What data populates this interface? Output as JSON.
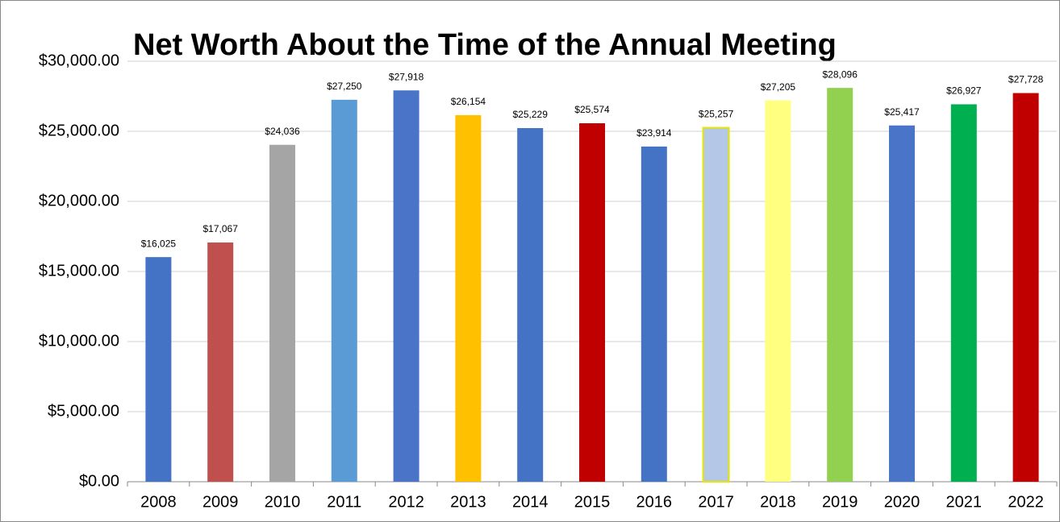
{
  "chart_data": {
    "type": "bar",
    "title": "Net Worth About the Time of the Annual Meeting",
    "categories": [
      "2008",
      "2009",
      "2010",
      "2011",
      "2012",
      "2013",
      "2014",
      "2015",
      "2016",
      "2017",
      "2018",
      "2019",
      "2020",
      "2021",
      "2022"
    ],
    "values": [
      16025,
      17067,
      24036,
      27250,
      27918,
      26154,
      25229,
      25574,
      23914,
      25257,
      27205,
      28096,
      25417,
      26927,
      27728
    ],
    "value_labels": [
      "$16,025",
      "$17,067",
      "$24,036",
      "$27,250",
      "$27,918",
      "$26,154",
      "$25,229",
      "$25,574",
      "$23,914",
      "$25,257",
      "$27,205",
      "$28,096",
      "$25,417",
      "$26,927",
      "$27,728"
    ],
    "colors": [
      "#4472c4",
      "#c0504d",
      "#a5a5a5",
      "#5b9bd5",
      "#4a74c8",
      "#ffc000",
      "#4472c4",
      "#c00000",
      "#4472c4",
      "#b4c7e7",
      "#ffff80",
      "#92d050",
      "#4a74c8",
      "#00b050",
      "#c00000"
    ],
    "ylim": [
      0,
      30000
    ],
    "yticks": [
      {
        "value": 0,
        "label": "$0.00"
      },
      {
        "value": 5000,
        "label": "$5,000.00"
      },
      {
        "value": 10000,
        "label": "$10,000.00"
      },
      {
        "value": 15000,
        "label": "$15,000.00"
      },
      {
        "value": 20000,
        "label": "$20,000.00"
      },
      {
        "value": 25000,
        "label": "$25,000.00"
      },
      {
        "value": 30000,
        "label": "$30,000.00"
      }
    ],
    "grid": true
  }
}
